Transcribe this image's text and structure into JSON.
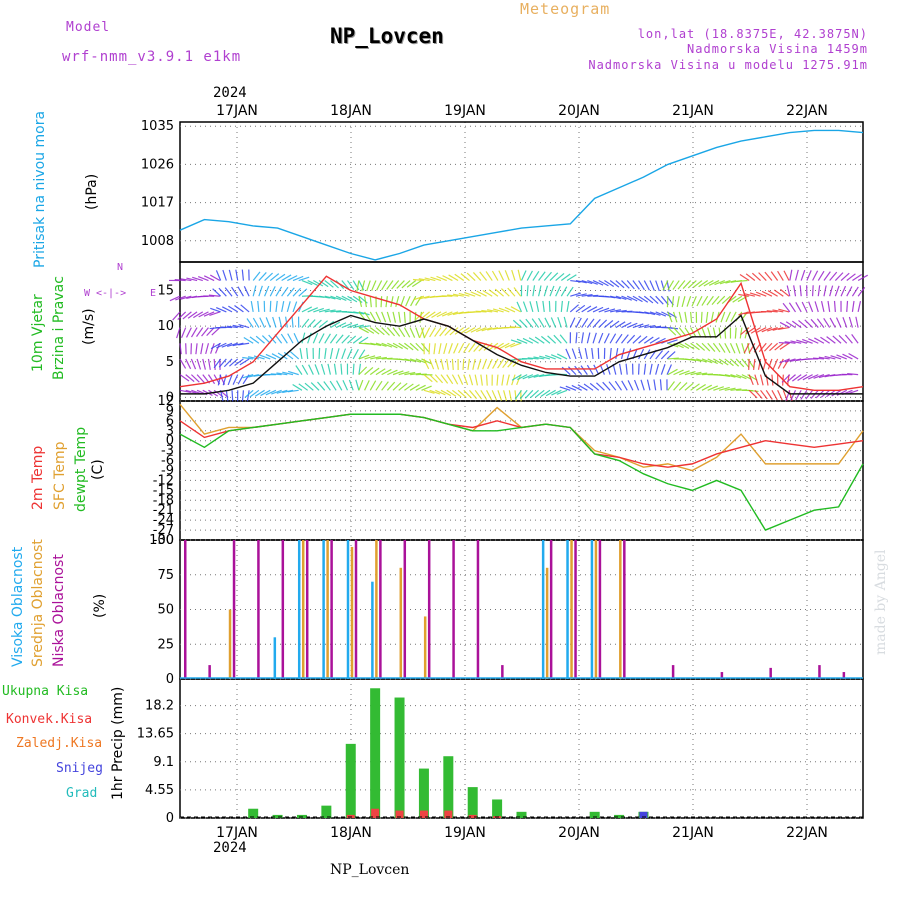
{
  "header": {
    "model_label": "Model",
    "model_name": "wrf-nmm_v3.9.1 e1km",
    "station": "NP_Lovcen",
    "product": "Meteogram",
    "lonlat": "lon,lat (18.8375E, 42.3875N)",
    "elevation": "Nadmorska Visina 1459m",
    "elevation_model": "Nadmorska Visina u modelu 1275.91m",
    "footer_station": "NP_Lovcen",
    "credit": "made by Angel",
    "year": "2024"
  },
  "colors": {
    "pressure": "#1aa6e6",
    "wind_speed": "#111111",
    "gust": "#ee3333",
    "t2m": "#ee3333",
    "sfc": "#e0a030",
    "dew": "#22bb22",
    "high_cloud": "#22aaee",
    "mid_cloud": "#e0a030",
    "low_cloud": "#aa1199",
    "precip": "#33bb33",
    "conv": "#ee4444",
    "frozen": "#ee7722",
    "snow": "#4444dd",
    "graupel": "#22bbbb"
  },
  "chart_data": [
    {
      "type": "line",
      "panel": "pressure",
      "ylabel": "Pritisak na nivou mora",
      "unit": "(hPa)",
      "ylim": [
        1003,
        1036
      ],
      "yticks": [
        1008,
        1017,
        1026,
        1035
      ],
      "x": [
        0,
        6,
        12,
        18,
        24,
        30,
        36,
        42,
        48,
        54,
        60,
        66,
        72,
        78,
        84,
        90,
        96,
        102,
        108,
        114,
        120,
        126,
        132,
        138,
        144,
        150,
        156,
        162,
        168
      ],
      "series": [
        {
          "values": [
            1010.5,
            1013,
            1012.5,
            1011.5,
            1011,
            1009,
            1007,
            1005,
            1003.5,
            1005,
            1007,
            1008,
            1009,
            1010,
            1011,
            1011.5,
            1012,
            1018,
            1020.5,
            1023,
            1026,
            1028,
            1030,
            1031.5,
            1032.5,
            1033.5,
            1034,
            1034,
            1033.5
          ]
        }
      ]
    },
    {
      "type": "line",
      "panel": "wind",
      "ylabel": [
        "10m Vjetar",
        "Brzina i Pravac"
      ],
      "unit": "(m/s)",
      "compass": [
        "N",
        "E",
        "W"
      ],
      "ylim": [
        -0.5,
        19
      ],
      "yticks": [
        0,
        5,
        10,
        15
      ],
      "x": [
        0,
        6,
        12,
        18,
        24,
        30,
        36,
        42,
        48,
        54,
        60,
        66,
        72,
        78,
        84,
        90,
        96,
        102,
        108,
        114,
        120,
        126,
        132,
        138,
        144,
        150,
        156,
        162,
        168
      ],
      "series": [
        {
          "name": "speed",
          "values": [
            0.5,
            0.5,
            1,
            2,
            5,
            8,
            10,
            11.5,
            10.5,
            10,
            11,
            10,
            8,
            6,
            4.5,
            3.5,
            3,
            3,
            5,
            6,
            7,
            8.5,
            8.5,
            11.5,
            3,
            0.5,
            0.5,
            0.5,
            0.5
          ]
        },
        {
          "name": "gust",
          "values": [
            1.5,
            2,
            3,
            5,
            9,
            13,
            17,
            15,
            14,
            13,
            11,
            10,
            8,
            7,
            5,
            4,
            4,
            4,
            6,
            7,
            8,
            9,
            11,
            16,
            5,
            1.5,
            1,
            1,
            1.5
          ]
        }
      ]
    },
    {
      "type": "line",
      "panel": "temperature",
      "ylabel": [
        "2m Temp",
        "SFC Temp",
        "dewpt Temp"
      ],
      "unit": "(C)",
      "ylim": [
        -30,
        12
      ],
      "yticks": [
        12,
        9,
        6,
        3,
        0,
        -3,
        -6,
        -9,
        -12,
        -15,
        -18,
        -21,
        -24,
        -27,
        -30
      ],
      "x": [
        0,
        6,
        12,
        18,
        24,
        30,
        36,
        42,
        48,
        54,
        60,
        66,
        72,
        78,
        84,
        90,
        96,
        102,
        108,
        114,
        120,
        126,
        132,
        138,
        144,
        150,
        156,
        162,
        168
      ],
      "series": [
        {
          "name": "2m Temp",
          "values": [
            6,
            1,
            3,
            4,
            5,
            6,
            7,
            8,
            8,
            8,
            7,
            5,
            4,
            6,
            4,
            5,
            4,
            -4,
            -5,
            -7,
            -8,
            -7,
            -4,
            -2,
            0,
            -1,
            -2,
            -1,
            0
          ]
        },
        {
          "name": "SFC Temp",
          "values": [
            11,
            2,
            4,
            4,
            5,
            6,
            7,
            8,
            8,
            8,
            7,
            5,
            3,
            10,
            4,
            5,
            4,
            -3,
            -5,
            -8,
            -7,
            -9,
            -5,
            2,
            -7,
            -7,
            -7,
            -7,
            3
          ]
        },
        {
          "name": "dewpt Temp",
          "values": [
            2,
            -2,
            3,
            4,
            5,
            6,
            7,
            8,
            8,
            8,
            7,
            5,
            3,
            3,
            4,
            5,
            4,
            -4,
            -6,
            -10,
            -13,
            -15,
            -12,
            -15,
            -27,
            -24,
            -21,
            -20,
            -7
          ]
        }
      ]
    },
    {
      "type": "bar",
      "panel": "clouds",
      "ylabel": [
        "Visoka Oblacnost",
        "Srednja Oblacnost",
        "Niska Oblacnost"
      ],
      "unit": "(%)",
      "ylim": [
        0,
        100
      ],
      "yticks": [
        0,
        25,
        50,
        75,
        100
      ],
      "x": [
        0,
        6,
        12,
        18,
        24,
        30,
        36,
        42,
        48,
        54,
        60,
        66,
        72,
        78,
        84,
        90,
        96,
        102,
        108,
        114,
        120,
        126,
        132,
        138,
        144,
        150,
        156,
        162,
        168
      ],
      "series": [
        {
          "name": "Visoka Oblacnost",
          "values": [
            0,
            0,
            0,
            0,
            30,
            100,
            100,
            100,
            70,
            0,
            0,
            0,
            0,
            0,
            0,
            100,
            100,
            100,
            0,
            0,
            0,
            0,
            0,
            0,
            0,
            0,
            0,
            0,
            0
          ]
        },
        {
          "name": "Srednja Oblacnost",
          "values": [
            0,
            0,
            50,
            0,
            0,
            100,
            100,
            95,
            100,
            80,
            45,
            0,
            0,
            0,
            0,
            80,
            100,
            100,
            100,
            0,
            0,
            0,
            0,
            0,
            0,
            0,
            0,
            0,
            0
          ]
        },
        {
          "name": "Niska Oblacnost",
          "values": [
            100,
            10,
            100,
            100,
            100,
            100,
            100,
            100,
            100,
            100,
            100,
            100,
            100,
            10,
            0,
            100,
            100,
            100,
            100,
            0,
            10,
            0,
            5,
            0,
            8,
            0,
            10,
            5,
            0
          ]
        }
      ]
    },
    {
      "type": "bar",
      "panel": "precipitation",
      "ylabel": "1hr Precip (mm)",
      "legend": [
        "Ukupna Kisa",
        "Konvek.Kisa",
        "Zaledj.Kisa",
        "Snijeg",
        "Grad"
      ],
      "ylim": [
        0,
        22.5
      ],
      "yticks": [
        0,
        4.55,
        9.1,
        13.65,
        18.2
      ],
      "x": [
        0,
        6,
        12,
        18,
        24,
        30,
        36,
        42,
        48,
        54,
        60,
        66,
        72,
        78,
        84,
        90,
        96,
        102,
        108,
        114,
        120,
        126,
        132,
        138,
        144,
        150,
        156,
        162,
        168
      ],
      "series": [
        {
          "name": "Ukupna Kisa",
          "values": [
            0,
            0,
            0,
            1.5,
            0.5,
            0.5,
            2,
            12,
            21,
            19.5,
            8,
            10,
            5,
            3,
            1,
            0,
            0,
            1,
            0.5,
            1,
            0,
            0,
            0,
            0,
            0,
            0,
            0,
            0,
            0
          ]
        },
        {
          "name": "Konvek.Kisa",
          "values": [
            0,
            0,
            0,
            0,
            0,
            0,
            0,
            0.5,
            1.5,
            1.2,
            1.2,
            1.2,
            0.5,
            0.3,
            0,
            0,
            0,
            0,
            0,
            0,
            0,
            0,
            0,
            0,
            0,
            0,
            0,
            0,
            0
          ]
        },
        {
          "name": "Snijeg",
          "values": [
            0,
            0,
            0,
            0,
            0,
            0,
            0,
            0,
            0,
            0,
            0,
            0,
            0,
            0,
            0,
            0,
            0,
            0,
            0,
            1,
            0,
            0,
            0,
            0,
            0,
            0,
            0,
            0,
            0
          ]
        }
      ]
    }
  ],
  "x_axis": {
    "top_labels": [
      "17JAN",
      "18JAN",
      "19JAN",
      "20JAN",
      "21JAN",
      "22JAN"
    ],
    "bottom_labels": [
      "17JAN",
      "18JAN",
      "19JAN",
      "20JAN",
      "21JAN",
      "22JAN"
    ]
  }
}
